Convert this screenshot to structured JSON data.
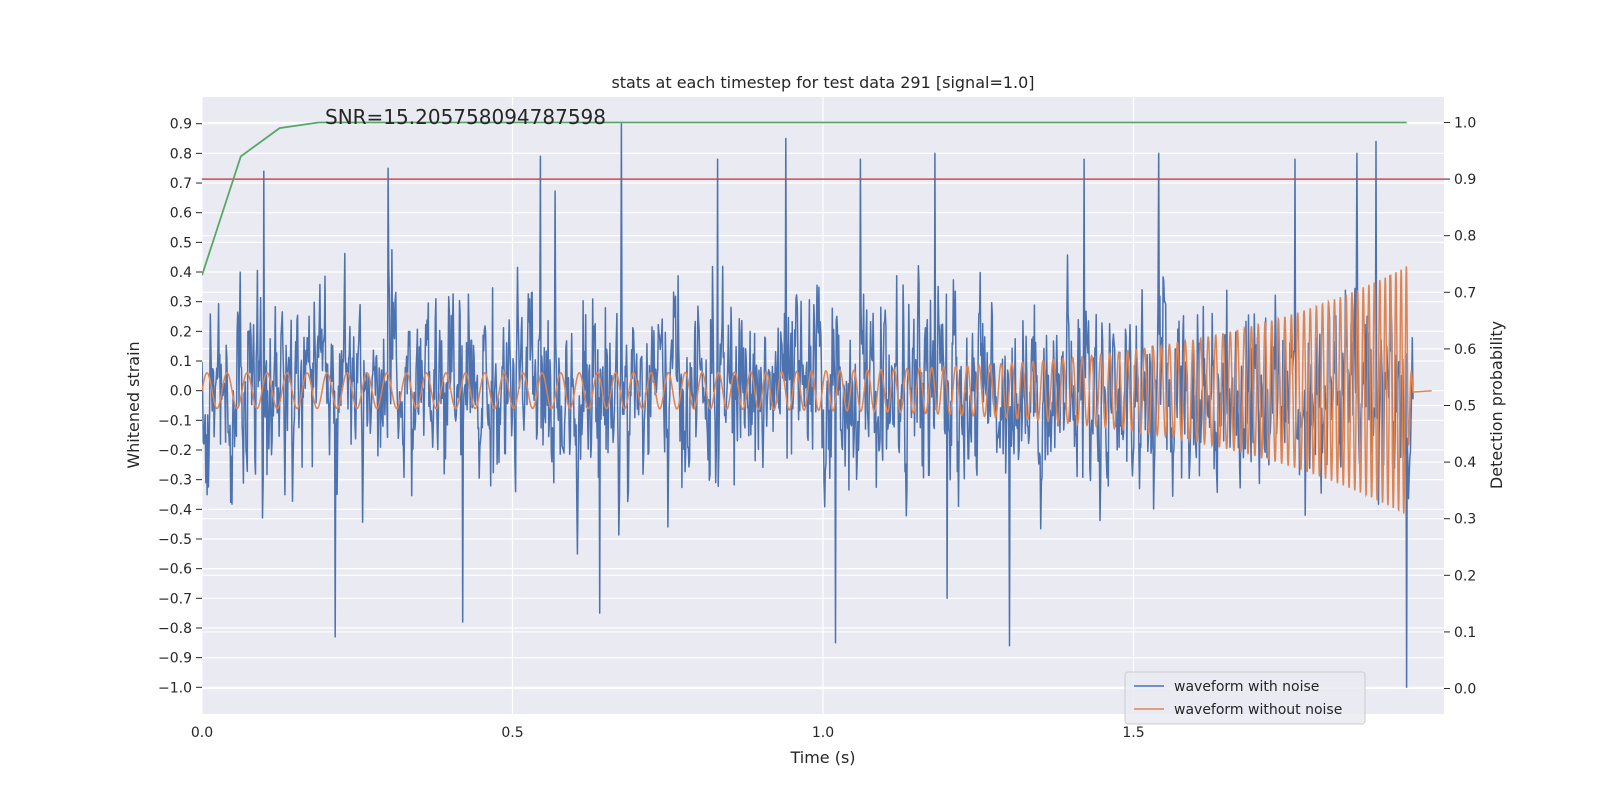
{
  "chart_data": {
    "type": "line",
    "title": "stats at each timestep for test data 291 [signal=1.0]",
    "xlabel": "Time (s)",
    "ylabel": "Whitened strain",
    "y2label": "Detection probability",
    "xlim": [
      0.0,
      2.0
    ],
    "ylim": [
      -1.09,
      0.99
    ],
    "y2lim": [
      -0.045,
      1.045
    ],
    "xticks": [
      "0.0",
      "0.5",
      "1.0",
      "1.5"
    ],
    "yticks": [
      "0.9",
      "0.8",
      "0.7",
      "0.6",
      "0.5",
      "0.4",
      "0.3",
      "0.2",
      "0.1",
      "0.0",
      "−0.1",
      "−0.2",
      "−0.3",
      "−0.4",
      "−0.5",
      "−0.6",
      "−0.7",
      "−0.8",
      "−0.9",
      "−1.0"
    ],
    "y2ticks": [
      "1.0",
      "0.9",
      "0.8",
      "0.7",
      "0.6",
      "0.5",
      "0.4",
      "0.3",
      "0.2",
      "0.1",
      "0.0"
    ],
    "grid": true,
    "legend_position": "lower-right",
    "annotation": "SNR=15.205758094787598",
    "threshold": {
      "axis": "right",
      "value": 0.9,
      "color": "#c44e52"
    },
    "series": [
      {
        "name": "waveform with noise",
        "axis": "left",
        "color": "#4c72b0",
        "style": "noise",
        "x_range": [
          0.0,
          1.95
        ],
        "amplitude_std": 0.26,
        "peaks": [
          [
            0.675,
            0.9
          ],
          [
            0.94,
            0.85
          ],
          [
            1.94,
            -1.0
          ],
          [
            1.02,
            -0.85
          ],
          [
            1.3,
            -0.86
          ],
          [
            0.215,
            -0.83
          ],
          [
            1.89,
            0.84
          ],
          [
            1.86,
            0.8
          ],
          [
            0.545,
            0.79
          ],
          [
            0.83,
            0.78
          ],
          [
            0.1,
            0.74
          ],
          [
            1.06,
            0.78
          ],
          [
            1.18,
            0.8
          ],
          [
            1.42,
            0.78
          ],
          [
            1.54,
            0.8
          ],
          [
            1.76,
            0.78
          ],
          [
            0.3,
            0.75
          ],
          [
            0.42,
            -0.78
          ],
          [
            0.64,
            -0.75
          ],
          [
            1.2,
            -0.7
          ]
        ]
      },
      {
        "name": "waveform without noise",
        "axis": "left",
        "color": "#dd8452",
        "style": "chirp",
        "x_range": [
          0.0,
          1.95
        ],
        "merger_time": 1.94,
        "amplitude_start": 0.06,
        "amplitude_peak": 0.42,
        "frequency_start": 31,
        "frequency_end": 120
      },
      {
        "name": "",
        "axis": "right",
        "color": "#55a868",
        "x": [
          0.0,
          0.0625,
          0.125,
          0.1875,
          0.25,
          0.3125,
          0.5,
          0.75,
          1.0,
          1.25,
          1.5,
          1.75,
          1.94
        ],
        "y": [
          0.73,
          0.94,
          0.99,
          1.0,
          1.0,
          1.0,
          1.0,
          1.0,
          1.0,
          1.0,
          1.0,
          1.0,
          1.0
        ]
      }
    ]
  }
}
